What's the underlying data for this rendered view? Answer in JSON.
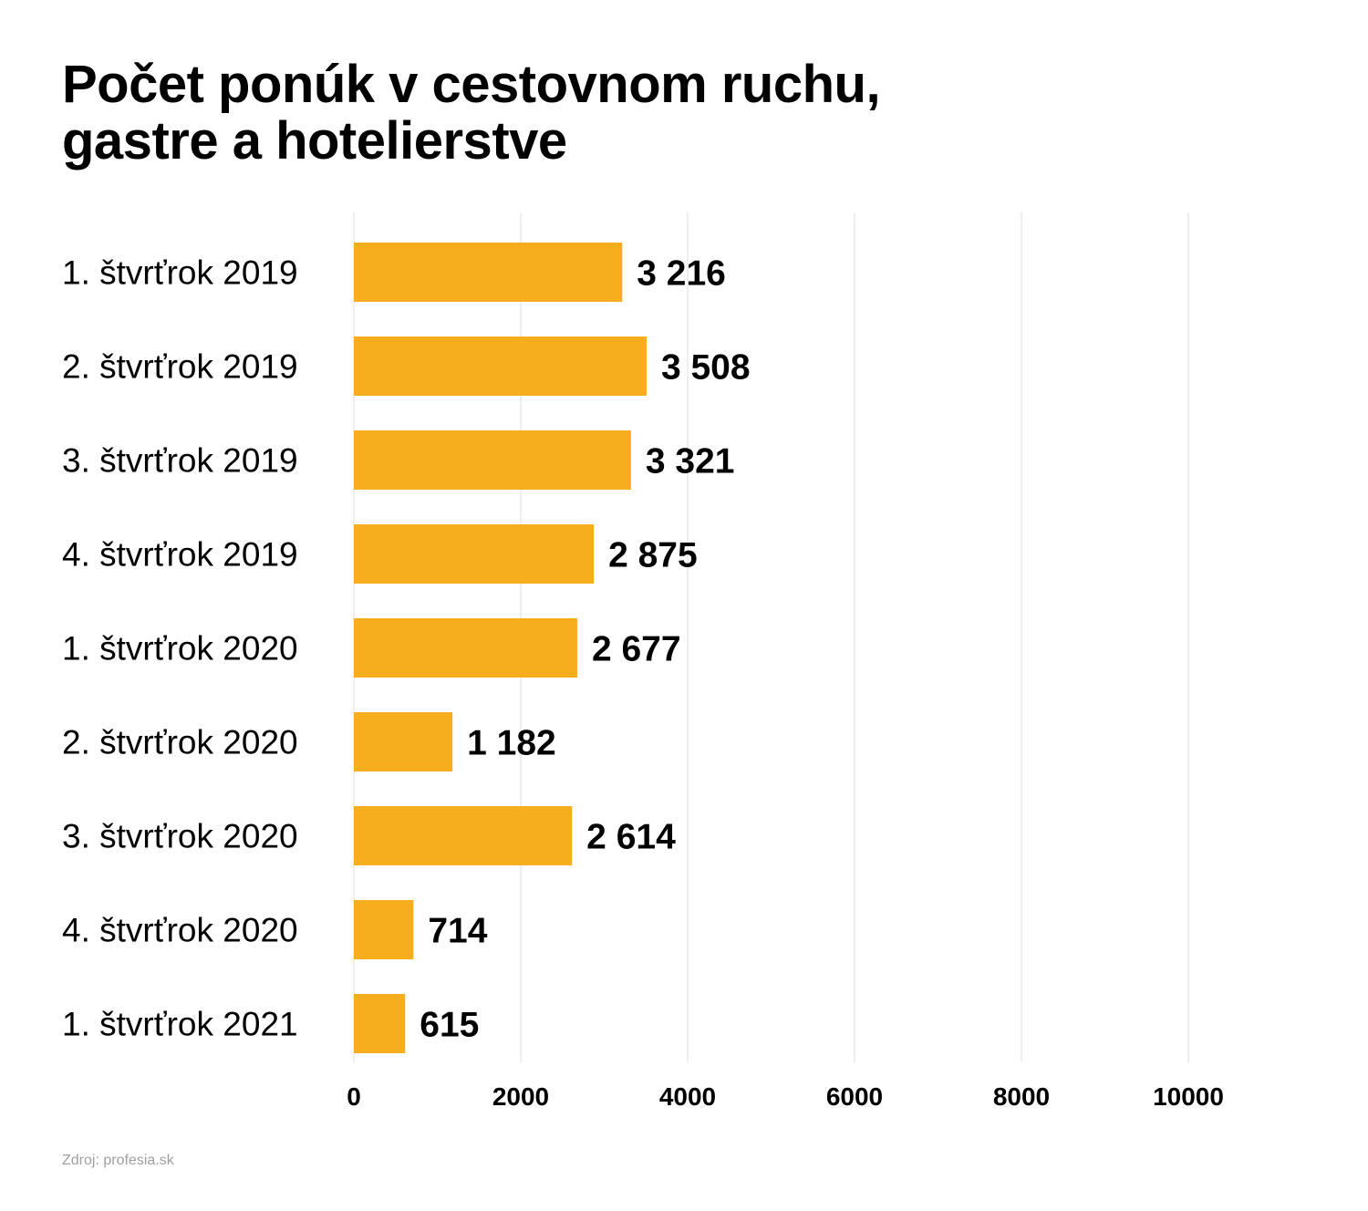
{
  "title": {
    "line1": "Počet ponúk v cestovnom ruchu,",
    "line2": "gastre a hotelierstve"
  },
  "source": "Zdroj: profesia.sk",
  "colors": {
    "bar": "#f7ae1e",
    "grid": "#dddddd",
    "text": "#000000",
    "source": "#a0a0a0"
  },
  "chart_data": {
    "type": "bar",
    "orientation": "horizontal",
    "categories": [
      "1. štvrťrok 2019",
      "2. štvrťrok 2019",
      "3. štvrťrok 2019",
      "4. štvrťrok 2019",
      "1. štvrťrok 2020",
      "2. štvrťrok 2020",
      "3. štvrťrok 2020",
      "4. štvrťrok 2020",
      "1. štvrťrok 2021"
    ],
    "values": [
      3216,
      3508,
      3321,
      2875,
      2677,
      1182,
      2614,
      714,
      615
    ],
    "data_labels": [
      "3 216",
      "3 508",
      "3 321",
      "2 875",
      "2 677",
      "1 182",
      "2 614",
      "714",
      "615"
    ],
    "xticks": [
      "0",
      "2000",
      "4000",
      "6000",
      "8000",
      "10000"
    ],
    "xlim": [
      0,
      10000
    ],
    "grid": true,
    "legend": "none"
  }
}
